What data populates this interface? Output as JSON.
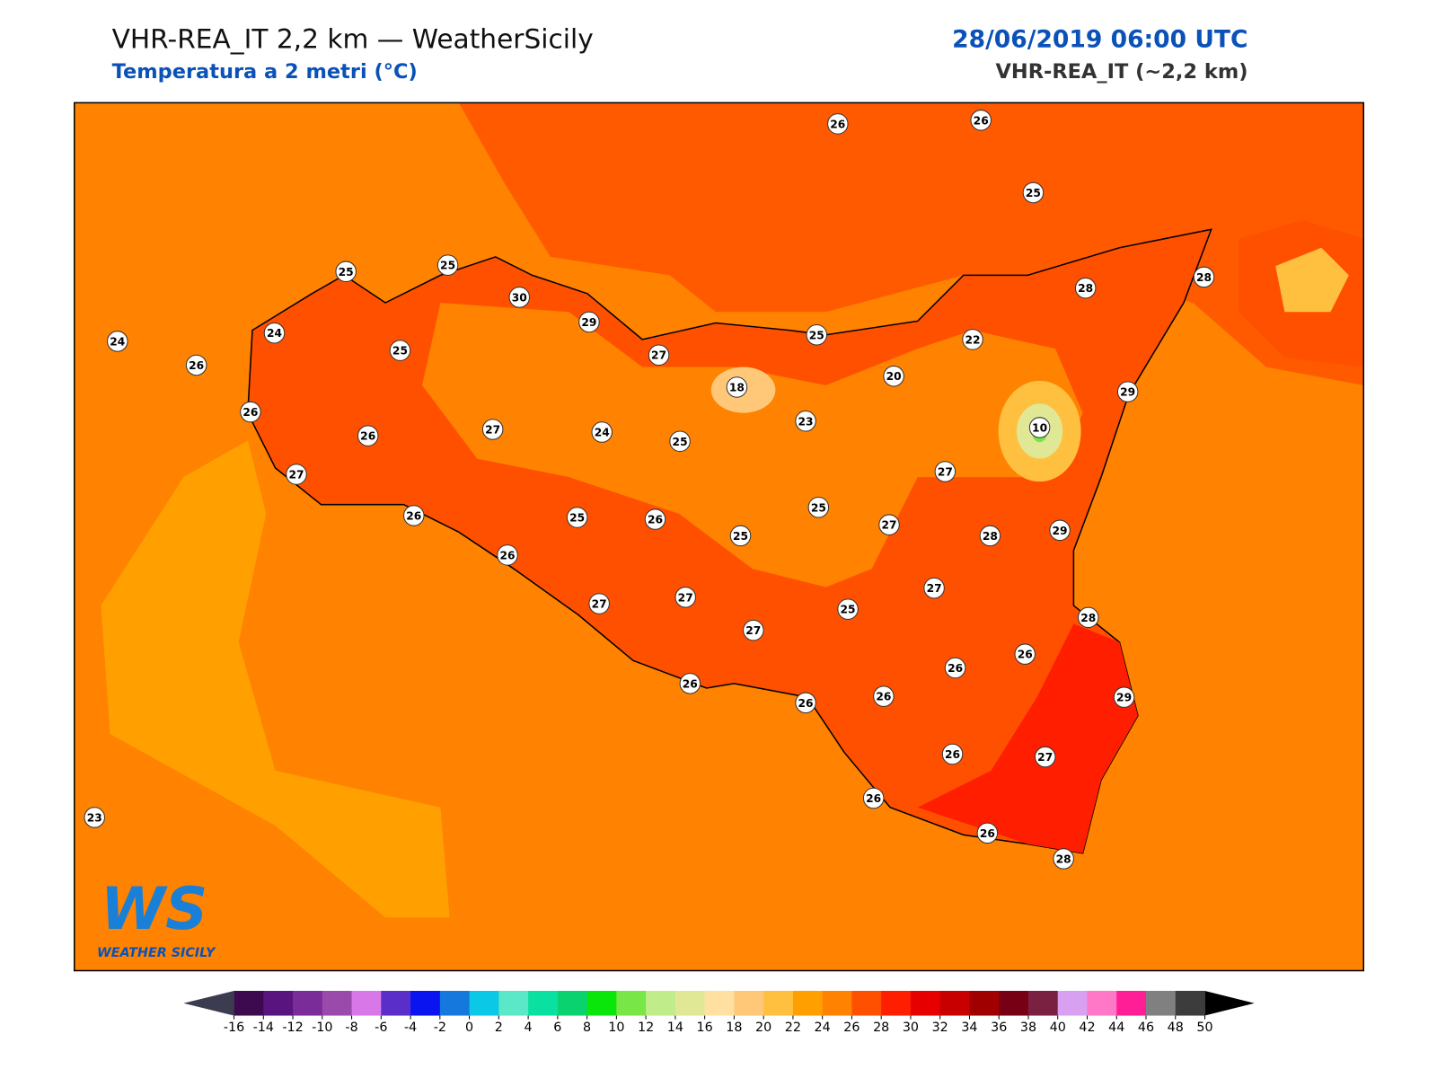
{
  "header": {
    "title": "VHR-REA_IT 2,2 km — WeatherSicily",
    "subtitle": "Temperatura a 2 metri (°C)",
    "date": "28/06/2019 06:00 UTC",
    "model": "VHR-REA_IT (~2,2 km)"
  },
  "logo": {
    "mark": "WS",
    "text": "WEATHER SICILY"
  },
  "stations": [
    26,
    26,
    25,
    28,
    28,
    25,
    25,
    30,
    29,
    27,
    25,
    22,
    24,
    24,
    26,
    25,
    20,
    18,
    29,
    23,
    10,
    26,
    26,
    27,
    24,
    25,
    27,
    27,
    25,
    26,
    25,
    26,
    25,
    27,
    28,
    29,
    26,
    27,
    27,
    27,
    25,
    28,
    27,
    26,
    26,
    26,
    26,
    26,
    29,
    26,
    27,
    23,
    26,
    26,
    28
  ],
  "colorbar": {
    "ticks": [
      -16,
      -14,
      -12,
      -10,
      -8,
      -6,
      -4,
      -2,
      0,
      2,
      4,
      6,
      8,
      10,
      12,
      14,
      16,
      18,
      20,
      22,
      24,
      26,
      28,
      30,
      32,
      34,
      36,
      38,
      40,
      42,
      44,
      46,
      48,
      50
    ],
    "colors": [
      "#3d0a50",
      "#5a1480",
      "#7a2d99",
      "#9a4aaa",
      "#d878e8",
      "#5a2ec8",
      "#0a14f0",
      "#1478dc",
      "#0ac8e6",
      "#5ae8c8",
      "#0ae0a0",
      "#0ad26e",
      "#0ae60a",
      "#78e646",
      "#c0ec8a",
      "#e0e896",
      "#ffe0a0",
      "#ffc878",
      "#ffc040",
      "#ffa000",
      "#ff8200",
      "#ff5000",
      "#ff1e00",
      "#e60000",
      "#c80000",
      "#a00000",
      "#780014",
      "#7a2040",
      "#d8a0f0",
      "#ff78c8",
      "#ff1e96",
      "#808080",
      "#3c3c3c"
    ],
    "under": "#3c3c50",
    "over": "#000000"
  }
}
